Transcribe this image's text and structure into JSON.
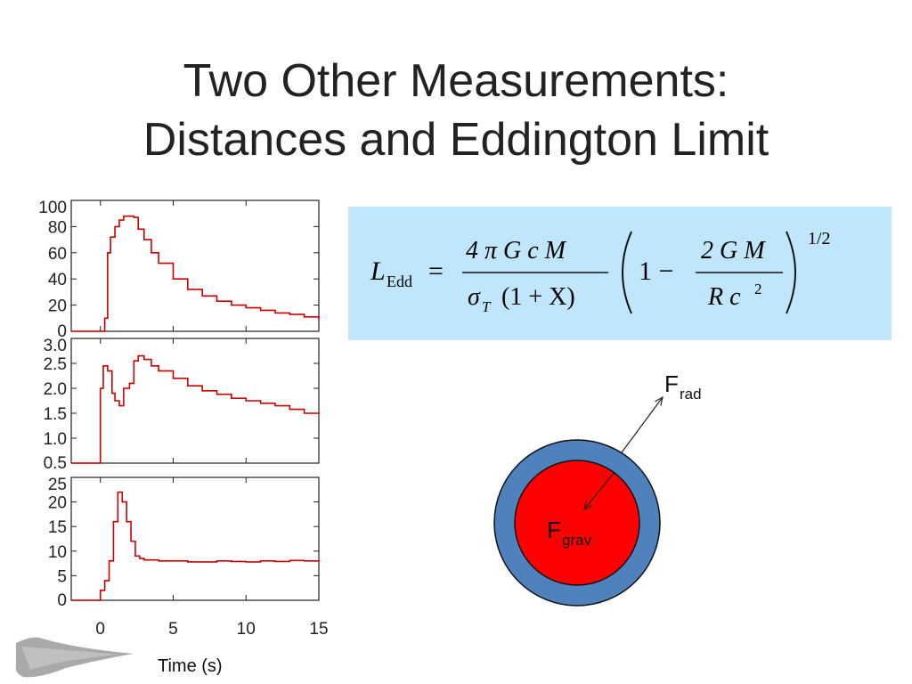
{
  "title": {
    "line1": "Two Other Measurements:",
    "line2": "Distances and Eddington Limit"
  },
  "formula": {
    "lhs_symbol": "L",
    "lhs_subscript": "Edd",
    "equals": "=",
    "numerator": "4 π G c M",
    "denominator": "σ",
    "denominator_sub": "T",
    "denominator_rest": "(1 + X)",
    "inner_one": "1 −",
    "inner_numerator": "2 G M",
    "inner_denominator": "R c",
    "inner_denominator_exp": "2",
    "exponent": "1/2"
  },
  "diagram": {
    "outer_color": "#4f81bd",
    "inner_color": "#ff0000",
    "f_rad": "F",
    "f_rad_sub": "rad",
    "f_grav": "F",
    "f_grav_sub": "grav"
  },
  "xlabel": "Time (s)",
  "chart_data": [
    {
      "type": "line",
      "yticks": [
        "100",
        "80",
        "60",
        "40",
        "20",
        "0"
      ],
      "ytick_values": [
        100,
        80,
        60,
        40,
        20,
        0
      ],
      "ylim": [
        0,
        100
      ],
      "xlim": [
        -2,
        15
      ],
      "color": "#cc0000",
      "series": [
        {
          "x": [
            -2,
            0,
            0.3,
            0.5,
            0.7,
            1.0,
            1.3,
            1.6,
            2.0,
            2.3,
            2.6,
            3.0,
            3.5,
            4.0,
            5.0,
            6.0,
            7.0,
            8.0,
            9.0,
            10.0,
            11.0,
            12.0,
            13.0,
            14.0,
            15.0
          ],
          "y": [
            0,
            0,
            10,
            60,
            72,
            80,
            85,
            88,
            88,
            87,
            78,
            70,
            60,
            52,
            40,
            32,
            27,
            23,
            20,
            18,
            16,
            14,
            13,
            11,
            9
          ]
        }
      ]
    },
    {
      "type": "line",
      "yticks": [
        "3.0",
        "2.5",
        "2.0",
        "1.5",
        "1.0",
        "0.5"
      ],
      "ytick_values": [
        3.0,
        2.5,
        2.0,
        1.5,
        1.0,
        0.5
      ],
      "ylim": [
        0.5,
        3.0
      ],
      "xlim": [
        -2,
        15
      ],
      "color": "#cc0000",
      "series": [
        {
          "x": [
            -2,
            -0.2,
            -0.1,
            0,
            0.2,
            0.5,
            0.8,
            1.0,
            1.3,
            1.6,
            2.0,
            2.3,
            2.6,
            3.0,
            3.5,
            4.0,
            5.0,
            6.0,
            7.0,
            8.0,
            9.0,
            10.0,
            11.0,
            12.0,
            13.0,
            14.0,
            15.0
          ],
          "y": [
            0.4,
            0.4,
            0.4,
            2.0,
            2.45,
            2.35,
            1.9,
            1.75,
            1.65,
            2.0,
            2.1,
            2.55,
            2.65,
            2.58,
            2.45,
            2.35,
            2.2,
            2.05,
            1.95,
            1.88,
            1.8,
            1.75,
            1.7,
            1.65,
            1.58,
            1.5,
            1.52
          ]
        }
      ]
    },
    {
      "type": "line",
      "yticks": [
        "25",
        "20",
        "15",
        "10",
        "5",
        "0"
      ],
      "ytick_values": [
        25,
        20,
        15,
        10,
        5,
        0
      ],
      "ylim": [
        0,
        25
      ],
      "xlim": [
        -2,
        15
      ],
      "color": "#cc0000",
      "series": [
        {
          "x": [
            -2,
            -0.3,
            0,
            0.3,
            0.6,
            0.9,
            1.2,
            1.5,
            1.8,
            2.1,
            2.4,
            2.7,
            3.0,
            4.0,
            5.0,
            6.0,
            7.0,
            8.0,
            9.0,
            10.0,
            11.0,
            12.0,
            13.0,
            14.0,
            15.0
          ],
          "y": [
            0,
            0,
            2,
            4,
            8,
            16,
            22,
            20,
            16,
            12,
            9,
            8.5,
            8.2,
            8.0,
            8.0,
            7.8,
            7.8,
            8.0,
            7.9,
            7.8,
            8.0,
            7.9,
            8.1,
            8.0,
            8.2
          ]
        }
      ]
    }
  ],
  "shared_xticks": [
    "0",
    "5",
    "10",
    "15"
  ],
  "shared_xtick_values": [
    0,
    5,
    10,
    15
  ]
}
